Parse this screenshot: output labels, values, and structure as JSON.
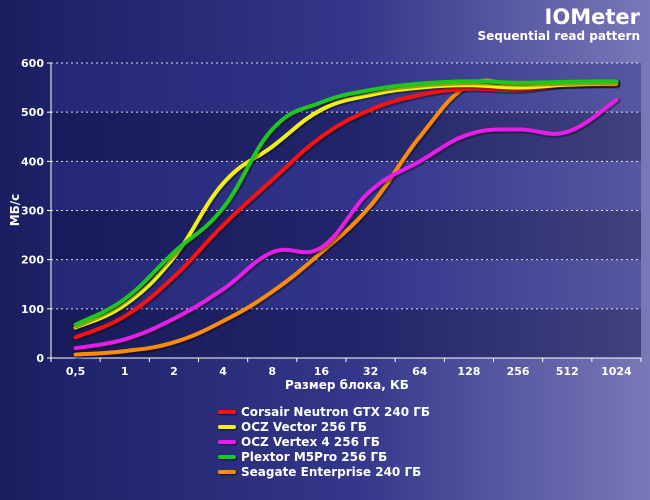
{
  "chart_data": {
    "type": "line",
    "title": "IOMeter",
    "subtitle": "Sequential read pattern",
    "xlabel": "Размер блока, КБ",
    "ylabel": "МБ/с",
    "categories": [
      "0,5",
      "1",
      "2",
      "4",
      "8",
      "16",
      "32",
      "64",
      "128",
      "256",
      "512",
      "1024"
    ],
    "y_ticks": [
      "0",
      "100",
      "200",
      "300",
      "400",
      "500",
      "600"
    ],
    "ylim": [
      0,
      600
    ],
    "grid": true,
    "legend_position": "bottom",
    "series": [
      {
        "name": "Corsair Neutron GTX 240 ГБ",
        "color": "#ff1010",
        "values": [
          42,
          85,
          165,
          270,
          362,
          450,
          505,
          535,
          548,
          545,
          556,
          556
        ]
      },
      {
        "name": "OCZ Vector 256 ГБ",
        "color": "#f2f20a",
        "values": [
          62,
          108,
          205,
          355,
          430,
          505,
          535,
          550,
          555,
          550,
          556,
          558
        ]
      },
      {
        "name": "OCZ Vertex 4 256 ГБ",
        "color": "#e81ee8",
        "values": [
          20,
          38,
          80,
          140,
          215,
          225,
          340,
          400,
          455,
          465,
          460,
          525
        ]
      },
      {
        "name": "Plextor M5Pro 256 ГБ",
        "color": "#1ec81e",
        "values": [
          68,
          120,
          215,
          305,
          465,
          520,
          545,
          558,
          563,
          560,
          562,
          563
        ]
      },
      {
        "name": "Seagate Enterprise 240 ГБ",
        "color": "#ff8c00",
        "values": [
          7,
          14,
          32,
          75,
          135,
          215,
          310,
          450,
          555,
          555,
          555,
          558
        ]
      }
    ]
  }
}
